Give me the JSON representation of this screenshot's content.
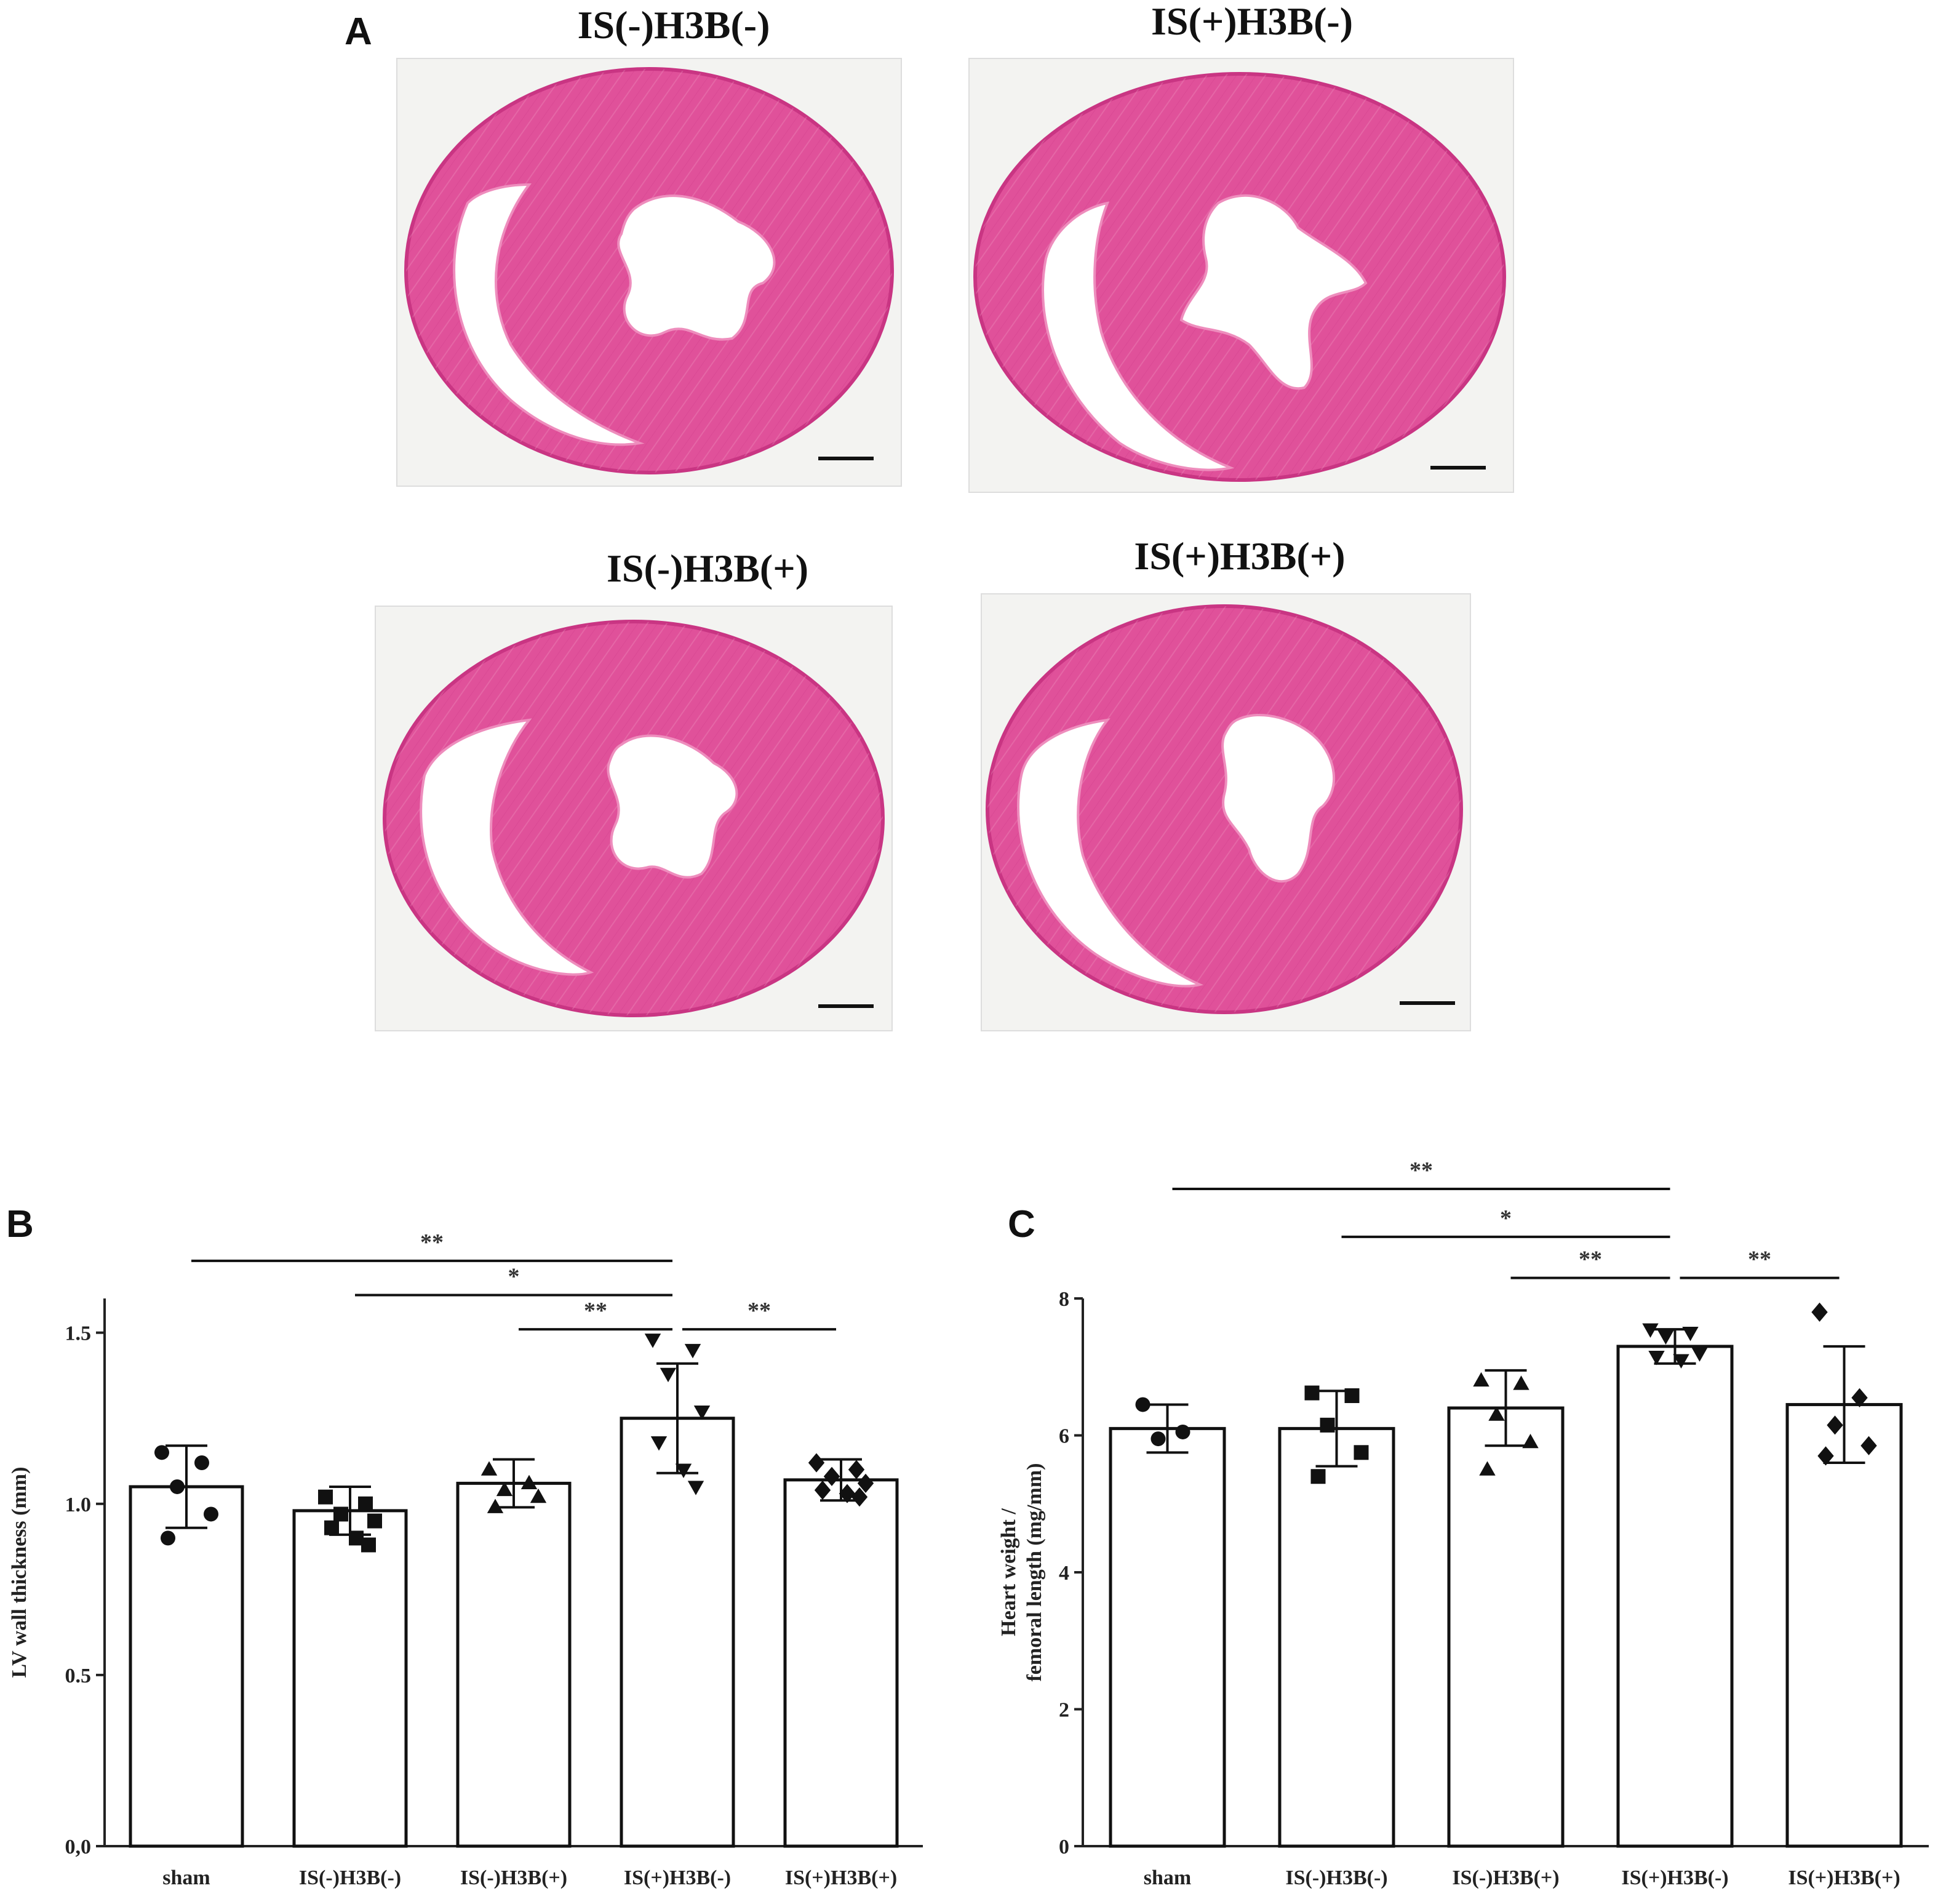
{
  "panel_a": {
    "letter": "A",
    "images": [
      {
        "title": "IS(-)H3B(-)"
      },
      {
        "title": "IS(+)H3B(-)"
      },
      {
        "title": "IS(-)H3B(+)"
      },
      {
        "title": "IS(+)H3B(+)"
      }
    ],
    "colors": {
      "tissue": "#e0519a",
      "tissue_dark": "#c93583",
      "tissue_light": "#ee8dbd",
      "slide": "#f3f3f1"
    }
  },
  "chart_data": [
    {
      "letter": "B",
      "type": "bar",
      "categories": [
        "sham",
        "IS(-)H3B(-)",
        "IS(-)H3B(+)",
        "IS(+)H3B(-)",
        "IS(+)H3B(+)"
      ],
      "values": [
        1.05,
        0.98,
        1.06,
        1.25,
        1.07
      ],
      "errors": [
        0.12,
        0.07,
        0.07,
        0.16,
        0.06
      ],
      "points": [
        [
          1.15,
          1.12,
          1.05,
          0.97,
          0.9
        ],
        [
          1.02,
          1.0,
          0.97,
          0.95,
          0.93,
          0.9,
          0.88
        ],
        [
          1.1,
          1.06,
          1.04,
          1.02,
          0.99
        ],
        [
          1.48,
          1.45,
          1.38,
          1.27,
          1.18,
          1.1,
          1.05
        ],
        [
          1.12,
          1.1,
          1.08,
          1.06,
          1.04,
          1.03,
          1.02
        ]
      ],
      "markers": [
        "circle",
        "square",
        "triangle",
        "triangle-down",
        "diamond"
      ],
      "ylabel": "LV wall thickness (mm)",
      "ylim": [
        0.0,
        1.6
      ],
      "yticks": [
        0.0,
        0.5,
        1.0,
        1.5
      ],
      "yticklabels": [
        "0,0",
        "0.5",
        "1.0",
        "1.5"
      ],
      "comparisons": [
        {
          "from": 0,
          "to": 3,
          "label": "**",
          "level": 1.71
        },
        {
          "from": 1,
          "to": 3,
          "label": "*",
          "level": 1.61
        },
        {
          "from": 2,
          "to": 3,
          "label": "**",
          "level": 1.51
        },
        {
          "from": 3,
          "to": 4,
          "label": "**",
          "level": 1.51
        }
      ]
    },
    {
      "letter": "C",
      "type": "bar",
      "categories": [
        "sham",
        "IS(-)H3B(-)",
        "IS(-)H3B(+)",
        "IS(+)H3B(-)",
        "IS(+)H3B(+)"
      ],
      "values": [
        6.1,
        6.1,
        6.4,
        7.3,
        6.45
      ],
      "errors": [
        0.35,
        0.55,
        0.55,
        0.25,
        0.85
      ],
      "points": [
        [
          6.45,
          6.05,
          5.95
        ],
        [
          6.62,
          6.58,
          6.15,
          5.75,
          5.4
        ],
        [
          6.8,
          6.75,
          6.3,
          5.9,
          5.5
        ],
        [
          7.55,
          7.5,
          7.45,
          7.2,
          7.15,
          7.1
        ],
        [
          7.8,
          6.55,
          6.15,
          5.85,
          5.7
        ]
      ],
      "markers": [
        "circle",
        "square",
        "triangle",
        "triangle-down",
        "diamond"
      ],
      "ylabel": [
        "Heart weight /",
        "femoral length (mg/mm)"
      ],
      "ylim": [
        0,
        8
      ],
      "yticks": [
        0,
        2,
        4,
        6,
        8
      ],
      "yticklabels": [
        "0",
        "2",
        "4",
        "6",
        "8"
      ],
      "comparisons": [
        {
          "from": 0,
          "to": 3,
          "label": "**",
          "level": 9.6
        },
        {
          "from": 1,
          "to": 3,
          "label": "*",
          "level": 8.9
        },
        {
          "from": 2,
          "to": 3,
          "label": "**",
          "level": 8.3
        },
        {
          "from": 3,
          "to": 4,
          "label": "**",
          "level": 8.3
        }
      ]
    }
  ]
}
